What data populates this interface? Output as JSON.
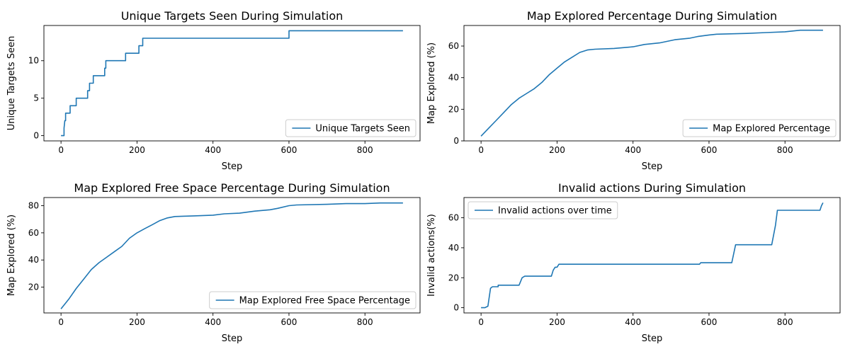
{
  "chart_data": [
    {
      "type": "line",
      "title": "Unique Targets Seen During Simulation",
      "xlabel": "Step",
      "ylabel": "Unique Targets Seen",
      "xlim": [
        -45,
        945
      ],
      "ylim": [
        -0.7,
        14.7
      ],
      "xticks": [
        0,
        200,
        400,
        600,
        800
      ],
      "yticks": [
        0,
        5,
        10
      ],
      "legend": {
        "position": "bottom-right"
      },
      "series": [
        {
          "name": "Unique Targets Seen",
          "color": "#1f77b4",
          "x": [
            0,
            8,
            8,
            10,
            12,
            12,
            24,
            24,
            40,
            40,
            70,
            70,
            75,
            75,
            85,
            85,
            100,
            100,
            115,
            115,
            118,
            118,
            120,
            120,
            170,
            170,
            205,
            205,
            215,
            215,
            600,
            600,
            900
          ],
          "y": [
            0,
            0,
            1,
            2,
            2,
            3,
            3,
            4,
            4,
            5,
            5,
            6,
            6,
            7,
            7,
            8,
            8,
            8,
            8,
            9,
            9,
            10,
            10,
            10,
            10,
            11,
            11,
            12,
            12,
            13,
            13,
            14,
            14
          ]
        }
      ]
    },
    {
      "type": "line",
      "title": "Map Explored Percentage During Simulation",
      "xlabel": "Step",
      "ylabel": "Map Explored (%)",
      "xlim": [
        -45,
        945
      ],
      "ylim": [
        0,
        73
      ],
      "xticks": [
        0,
        200,
        400,
        600,
        800
      ],
      "yticks": [
        0,
        20,
        40,
        60
      ],
      "legend": {
        "position": "bottom-right"
      },
      "series": [
        {
          "name": "Map Explored Percentage",
          "color": "#1f77b4",
          "x": [
            0,
            20,
            40,
            60,
            80,
            100,
            120,
            140,
            160,
            180,
            200,
            220,
            240,
            260,
            280,
            300,
            350,
            400,
            430,
            470,
            510,
            550,
            570,
            600,
            620,
            700,
            750,
            800,
            840,
            900
          ],
          "y": [
            3,
            8,
            13,
            18,
            23,
            27,
            30,
            33,
            37,
            42,
            46,
            50,
            53,
            56,
            57.5,
            58,
            58.5,
            59.5,
            61,
            62,
            64,
            65,
            66,
            67,
            67.5,
            68,
            68.5,
            69,
            70,
            70
          ]
        }
      ]
    },
    {
      "type": "line",
      "title": "Map Explored Free Space Percentage During Simulation",
      "xlabel": "Step",
      "ylabel": "Map Explored (%)",
      "xlim": [
        -45,
        945
      ],
      "ylim": [
        1,
        86
      ],
      "xticks": [
        0,
        200,
        400,
        600,
        800
      ],
      "yticks": [
        20,
        40,
        60,
        80
      ],
      "legend": {
        "position": "bottom-right"
      },
      "series": [
        {
          "name": "Map Explored Free Space Percentage",
          "color": "#1f77b4",
          "x": [
            0,
            20,
            40,
            60,
            80,
            100,
            120,
            140,
            160,
            180,
            200,
            220,
            240,
            260,
            280,
            300,
            350,
            400,
            430,
            470,
            510,
            550,
            570,
            600,
            620,
            700,
            750,
            800,
            840,
            900
          ],
          "y": [
            4,
            11,
            19,
            26,
            33,
            38,
            42,
            46,
            50,
            56,
            60,
            63,
            66,
            69,
            71,
            72,
            72.5,
            73,
            74,
            74.5,
            76,
            77,
            78,
            80,
            80.5,
            81,
            81.5,
            81.5,
            82,
            82
          ]
        }
      ]
    },
    {
      "type": "line",
      "title": "Invalid actions During Simulation",
      "xlabel": "Step",
      "ylabel": "Invalid actions(%)",
      "xlim": [
        -45,
        945
      ],
      "ylim": [
        -3.5,
        73.5
      ],
      "xticks": [
        0,
        200,
        400,
        600,
        800
      ],
      "yticks": [
        0,
        20,
        40,
        60
      ],
      "legend": {
        "position": "top-left"
      },
      "series": [
        {
          "name": "Invalid actions over time",
          "color": "#1f77b4",
          "x": [
            0,
            10,
            18,
            25,
            30,
            45,
            45,
            100,
            108,
            115,
            185,
            190,
            195,
            200,
            205,
            575,
            578,
            660,
            670,
            765,
            775,
            780,
            892,
            896,
            900
          ],
          "y": [
            0,
            0,
            1,
            13,
            14,
            14,
            15,
            15,
            20,
            21,
            21,
            25,
            27,
            27,
            29,
            29,
            30,
            30,
            42,
            42,
            55,
            65,
            65,
            68,
            70
          ]
        }
      ]
    }
  ]
}
